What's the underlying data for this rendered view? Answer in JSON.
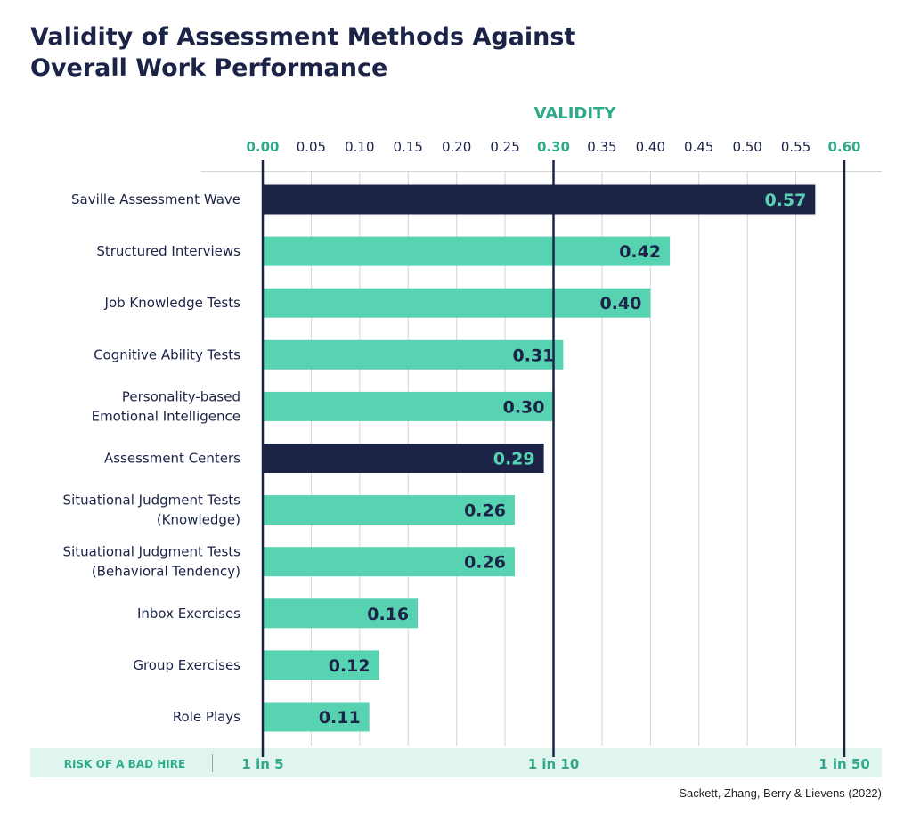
{
  "title_lines": [
    "Validity of Assessment Methods Against",
    "Overall Work Performance"
  ],
  "source": "Sackett, Zhang, Berry & Lievens (2022)",
  "colors": {
    "navy": "#1b2347",
    "teal": "#58d3b2",
    "teal_text": "#2fa98a",
    "band": "#dff5ee",
    "grid": "#d4d4d4"
  },
  "chart_data": {
    "type": "bar",
    "orientation": "horizontal",
    "title": "Validity of Assessment Methods Against Overall Work Performance",
    "xlabel": "VALIDITY",
    "xlim": [
      0,
      0.6
    ],
    "xtick_step": 0.05,
    "xticks": [
      "0.00",
      "0.05",
      "0.10",
      "0.15",
      "0.20",
      "0.25",
      "0.30",
      "0.35",
      "0.40",
      "0.45",
      "0.50",
      "0.55",
      "0.60"
    ],
    "highlight_ticks": [
      "0.00",
      "0.30",
      "0.60"
    ],
    "reference_lines": [
      0,
      0.3,
      0.6
    ],
    "grid": true,
    "categories": [
      "Saville Assessment Wave",
      "Structured Interviews",
      "Job Knowledge Tests",
      "Cognitive Ability Tests",
      "Personality-based\nEmotional Intelligence",
      "Assessment Centers",
      "Situational Judgment Tests\n(Knowledge)",
      "Situational Judgment Tests\n(Behavioral Tendency)",
      "Inbox Exercises",
      "Group Exercises",
      "Role Plays"
    ],
    "values": [
      0.57,
      0.42,
      0.4,
      0.31,
      0.3,
      0.29,
      0.26,
      0.26,
      0.16,
      0.12,
      0.11
    ],
    "data_labels": [
      "0.57",
      "0.42",
      "0.40",
      "0.31",
      "0.30",
      "0.29",
      "0.26",
      "0.26",
      "0.16",
      "0.12",
      "0.11"
    ],
    "highlighted": [
      true,
      false,
      false,
      false,
      false,
      true,
      false,
      false,
      false,
      false,
      false
    ],
    "risk_band": {
      "label": "RISK OF A BAD HIRE",
      "markers": [
        {
          "value": 0,
          "text": "1 in 5"
        },
        {
          "value": 0.3,
          "text": "1 in 10"
        },
        {
          "value": 0.6,
          "text": "1 in 50"
        }
      ]
    }
  }
}
